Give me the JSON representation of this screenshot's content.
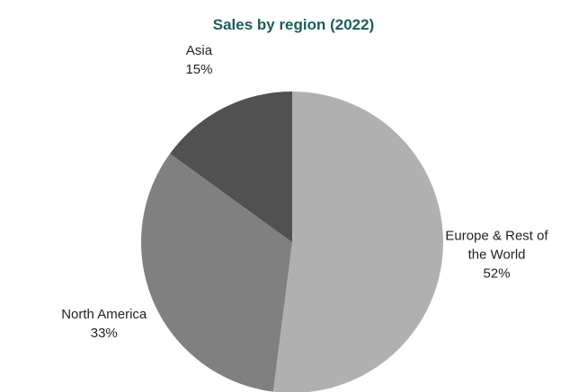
{
  "chart_data": {
    "type": "pie",
    "title": "Sales by region (2022)",
    "categories": [
      "Europe & Rest of the World",
      "North America",
      "Asia"
    ],
    "values": [
      52,
      33,
      15
    ],
    "value_labels": [
      "52%",
      "33%",
      "15%"
    ],
    "colors": [
      "#b0b0b0",
      "#808080",
      "#515151"
    ]
  }
}
